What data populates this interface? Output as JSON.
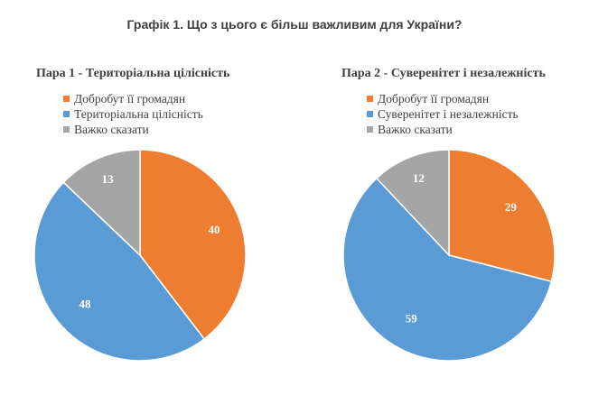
{
  "title": "Графік 1. Що з цього є більш важливим для України?",
  "colors": {
    "orange": "#ED7D31",
    "blue": "#5B9BD5",
    "gray": "#A5A5A5"
  },
  "chart_data": [
    {
      "type": "pie",
      "title": "Пара 1 - Територіальна цілісність",
      "categories": [
        "Добробут її громадян",
        "Територіальна цілісність",
        "Важко сказати"
      ],
      "values": [
        40,
        48,
        13
      ],
      "colors": [
        "#ED7D31",
        "#5B9BD5",
        "#A5A5A5"
      ],
      "legend": "top"
    },
    {
      "type": "pie",
      "title": "Пара 2 - Суверенітет і незалежність",
      "categories": [
        "Добробут її громадян",
        "Суверенітет і незалежність",
        "Важко сказати"
      ],
      "values": [
        29,
        59,
        12
      ],
      "colors": [
        "#ED7D31",
        "#5B9BD5",
        "#A5A5A5"
      ],
      "legend": "top"
    }
  ]
}
